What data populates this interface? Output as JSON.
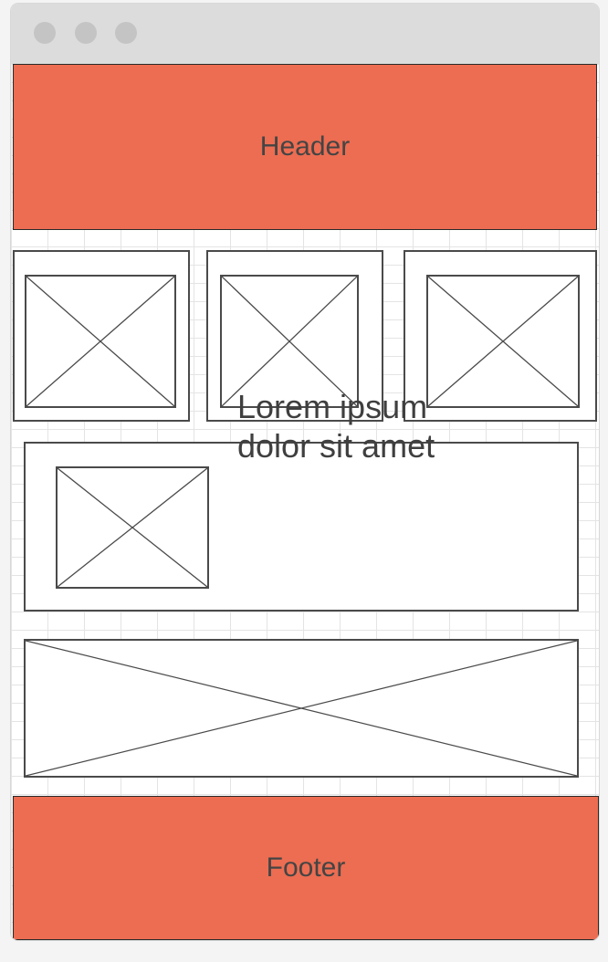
{
  "header": {
    "label": "Header"
  },
  "footer": {
    "label": "Footer"
  },
  "content": {
    "text_line1": "Lorem ipsum",
    "text_line2": "dolor sit amet"
  },
  "colors": {
    "accent": "#ec6d52",
    "stroke": "#4a4a4a",
    "titlebar": "#dcdcdc",
    "grid": "#e4e4e4"
  }
}
